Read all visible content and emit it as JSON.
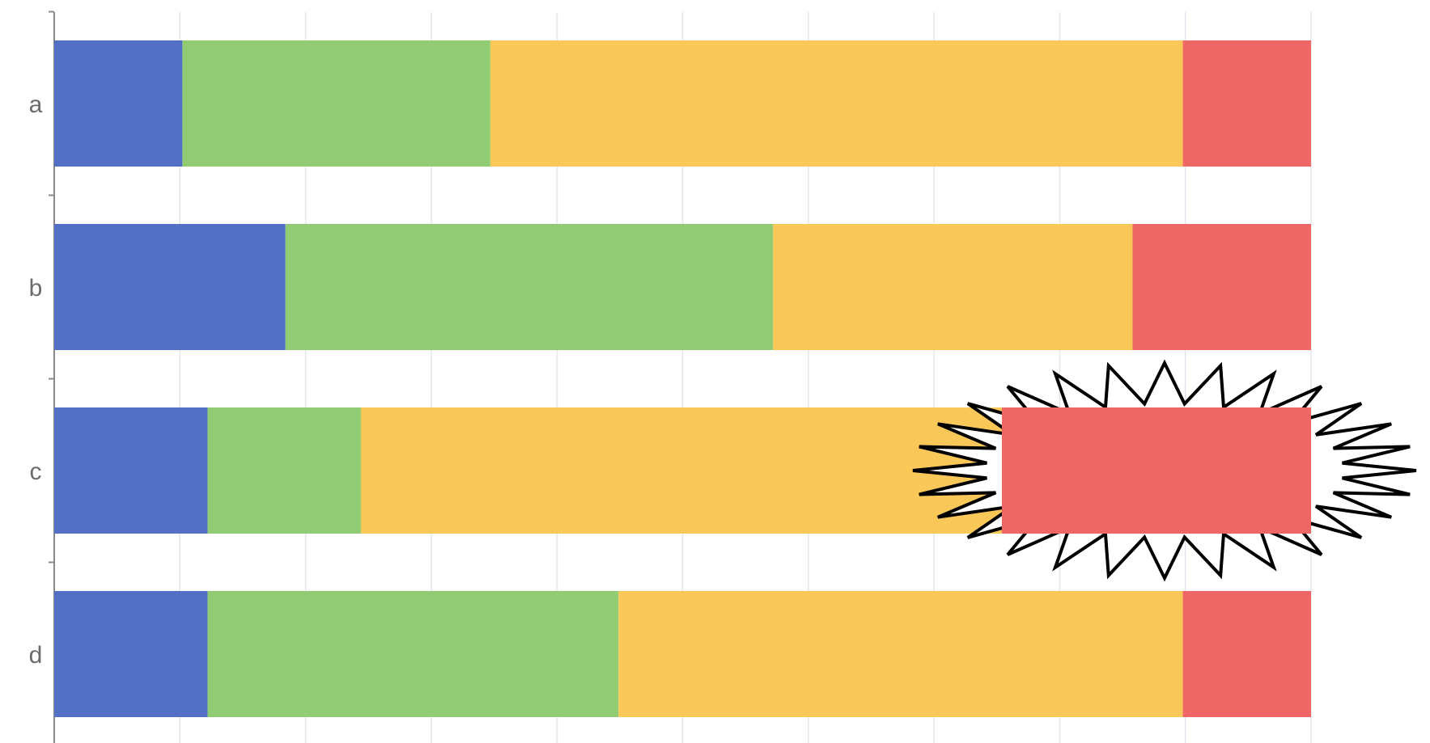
{
  "chart_data": {
    "type": "bar",
    "orientation": "horizontal",
    "stacked": true,
    "normalized_to_percent": true,
    "categories": [
      "a",
      "b",
      "c",
      "d"
    ],
    "series": [
      {
        "color": "#5470c6",
        "values": [
          10.2,
          18.4,
          12.2,
          12.2
        ]
      },
      {
        "color": "#91cc75",
        "values": [
          24.5,
          38.8,
          12.2,
          32.7
        ]
      },
      {
        "color": "#fac858",
        "values": [
          55.1,
          28.6,
          51.0,
          44.9
        ]
      },
      {
        "color": "#ee6666",
        "values": [
          10.2,
          14.2,
          24.6,
          10.2
        ]
      }
    ],
    "xlim": [
      0,
      100
    ],
    "grid": true,
    "legend": "none",
    "annotation": {
      "type": "starburst",
      "target": "c-series-4-segment"
    }
  }
}
